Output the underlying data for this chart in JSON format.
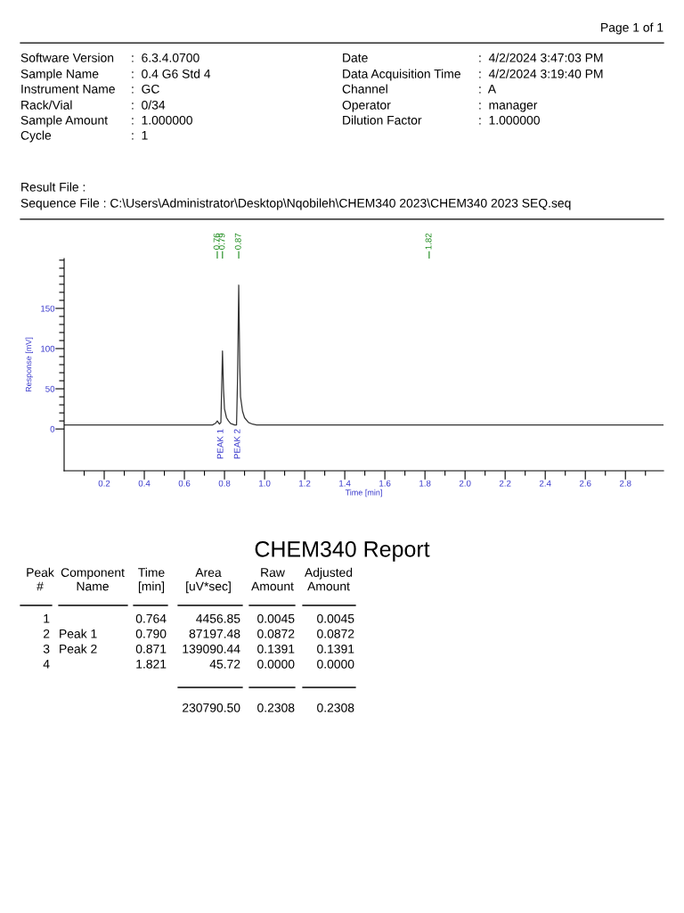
{
  "chart_data": {
    "type": "line",
    "title": "CHEM340 Report",
    "xlabel": "Time [min]",
    "ylabel": "Response [mV]",
    "xlim": [
      0,
      2.99
    ],
    "ylim": [
      -52,
      212
    ],
    "xticks": [
      {
        "value": 0.1,
        "label": null
      },
      0.2,
      {
        "value": 0.3,
        "label": null
      },
      0.4,
      {
        "value": 0.5,
        "label": null
      },
      0.6,
      {
        "value": 0.7,
        "label": null
      },
      0.8,
      {
        "value": 0.9,
        "label": null
      },
      {
        "value": 1.0,
        "label": "1.0"
      },
      {
        "value": 1.1,
        "label": null
      },
      1.2,
      {
        "value": 1.3,
        "label": null
      },
      1.4,
      {
        "value": 1.5,
        "label": null
      },
      1.6,
      {
        "value": 1.7,
        "label": null
      },
      1.8,
      {
        "value": 1.9,
        "label": null
      },
      {
        "value": 2.0,
        "label": "2.0"
      },
      {
        "value": 2.1,
        "label": null
      },
      2.2,
      {
        "value": 2.3,
        "label": null
      },
      2.4,
      {
        "value": 2.5,
        "label": null
      },
      2.6,
      {
        "value": 2.7,
        "label": null
      },
      2.8,
      {
        "value": 2.9,
        "label": null
      }
    ],
    "yticks": [
      0,
      {
        "value": 10,
        "label": null
      },
      {
        "value": 20,
        "label": null
      },
      {
        "value": 30,
        "label": null
      },
      {
        "value": 40,
        "label": null
      },
      50,
      {
        "value": 60,
        "label": null
      },
      {
        "value": 70,
        "label": null
      },
      {
        "value": 80,
        "label": null
      },
      {
        "value": 90,
        "label": null
      },
      100,
      {
        "value": 110,
        "label": null
      },
      {
        "value": 120,
        "label": null
      },
      {
        "value": 130,
        "label": null
      },
      {
        "value": 140,
        "label": null
      },
      150,
      {
        "value": 160,
        "label": null
      },
      {
        "value": 170,
        "label": null
      },
      {
        "value": 180,
        "label": null
      },
      {
        "value": 190,
        "label": null
      },
      {
        "value": 200,
        "label": null
      },
      {
        "value": 210,
        "label": null
      }
    ],
    "x2lim": [
      0,
      2.99
    ],
    "x2ticks": [
      {
        "value": 0.764,
        "label": "0.76"
      },
      {
        "value": 0.79,
        "label": "0.79"
      },
      {
        "value": 0.871,
        "label": "0.87"
      },
      {
        "value": 1.821,
        "label": "1.82"
      }
    ],
    "grid": false,
    "legend": false,
    "marker": "none",
    "line_style": "solid",
    "series": [
      {
        "color": "#333333",
        "x": [
          0,
          0.74,
          0.755,
          0.764,
          0.775,
          0.782,
          0.79,
          0.795,
          0.8,
          0.81,
          0.82,
          0.83,
          0.85,
          0.86,
          0.865,
          0.871,
          0.876,
          0.88,
          0.89,
          0.9,
          0.92,
          0.94,
          0.96,
          2.99
        ],
        "values": [
          5,
          5,
          7,
          10,
          6,
          8,
          97,
          50,
          25,
          14,
          10,
          7,
          5,
          5,
          60,
          179,
          80,
          40,
          22,
          14,
          8,
          6,
          5,
          5
        ]
      }
    ],
    "annotations": [
      "PEAK 1",
      "PEAK 2",
      "Page 1 of 1",
      "Software Version",
      ":  6.3.4.0700",
      "Sample Name",
      ":  0.4 G6 Std 4",
      "Instrument Name",
      ":  GC",
      "Rack/Vial",
      ":  0/34",
      "Sample Amount",
      ":  1.000000",
      "Cycle",
      ":  1",
      "Date",
      ":  4/2/2024 3:47:03 PM",
      "Data Acquisition Time",
      ":  4/2/2024 3:19:40 PM",
      "Channel",
      ":  A",
      "Operator",
      ":  manager",
      "Dilution Factor",
      ":  1.000000",
      "Result File :",
      "Sequence File : C:\\Users\\Administrator\\Desktop\\Nqobileh\\CHEM340 2023\\CHEM340 2023 SEQ.seq",
      "Peak\n#",
      "Component\nName",
      "Time\n[min]",
      "Area\n[uV*sec]",
      "Raw\nAmount",
      "Adjusted\nAmount",
      "1",
      "0.764",
      "4456.85",
      "0.0045",
      "0.0045",
      "2",
      "Peak 1",
      "0.790",
      "87197.48",
      "0.0872",
      "0.0872",
      "3",
      "Peak 2",
      "0.871",
      "139090.44",
      "0.1391",
      "0.1391",
      "4",
      "1.821",
      "45.72",
      "0.0000",
      "0.0000",
      "230790.50",
      "0.2308",
      "0.2308"
    ]
  }
}
